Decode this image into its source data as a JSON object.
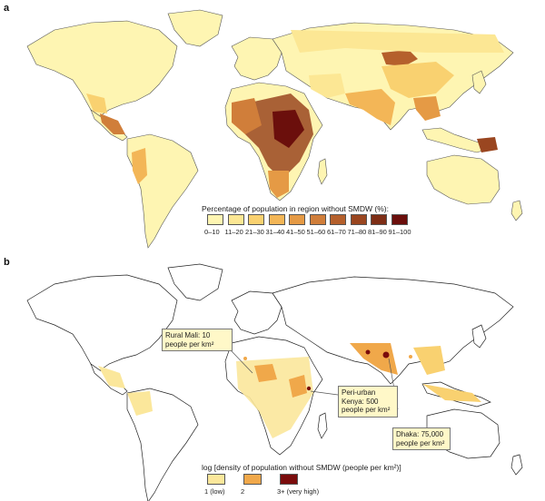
{
  "panels": [
    {
      "label": "a"
    },
    {
      "label": "b"
    }
  ],
  "legend_a": {
    "title": "Percentage of population in region without SMDW (%):",
    "classes": [
      {
        "label": "0–10",
        "color": "#fef5b2"
      },
      {
        "label": "11–20",
        "color": "#fce794"
      },
      {
        "label": "21–30",
        "color": "#f9d170"
      },
      {
        "label": "31–40",
        "color": "#f3b657"
      },
      {
        "label": "41–50",
        "color": "#e59a45"
      },
      {
        "label": "51–60",
        "color": "#d07e3a"
      },
      {
        "label": "61–70",
        "color": "#b5602c"
      },
      {
        "label": "71–80",
        "color": "#9a4620"
      },
      {
        "label": "81–90",
        "color": "#7e2e16"
      },
      {
        "label": "91–100",
        "color": "#6b0f0c"
      }
    ]
  },
  "legend_b": {
    "title": "log [density of population without SMDW (people per km²)]",
    "classes": [
      {
        "label": "1 (low)",
        "color": "#fbe79b"
      },
      {
        "label": "2",
        "color": "#f0a84a"
      },
      {
        "label": "3+ (very high)",
        "color": "#7a0c0c"
      }
    ]
  },
  "callouts": {
    "mali": "Rural Mali: 10 people per km²",
    "kenya": "Peri-urban Kenya: 500 people per km²",
    "dhaka": "Dhaka: 75,000 people per km²"
  }
}
